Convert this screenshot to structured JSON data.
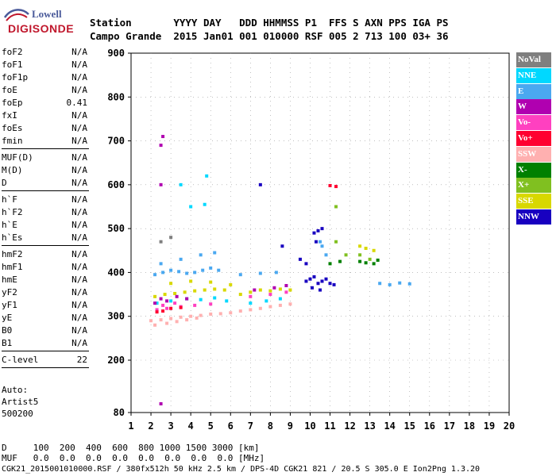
{
  "logo": {
    "line1": "Lowell",
    "line2": "DIGISONDE"
  },
  "header": {
    "row1": "Station       YYYY DAY   DDD HHMMSS P1  FFS S AXN PPS IGA PS",
    "row2": "Campo Grande  2015 Jan01 001 010000 RSF 005 2 713 100 03+ 36"
  },
  "params": [
    {
      "name": "foF2",
      "value": "N/A"
    },
    {
      "name": "foF1",
      "value": "N/A"
    },
    {
      "name": "foF1p",
      "value": "N/A"
    },
    {
      "name": "foE",
      "value": "N/A"
    },
    {
      "name": "foEp",
      "value": "0.41"
    },
    {
      "name": "fxI",
      "value": "N/A"
    },
    {
      "name": "foEs",
      "value": "N/A"
    },
    {
      "name": "fmin",
      "value": "N/A"
    },
    {
      "name": "MUF(D)",
      "value": "N/A"
    },
    {
      "name": "M(D)",
      "value": "N/A"
    },
    {
      "name": "D",
      "value": "N/A"
    },
    {
      "name": "h`F",
      "value": "N/A"
    },
    {
      "name": "h`F2",
      "value": "N/A"
    },
    {
      "name": "h`E",
      "value": "N/A"
    },
    {
      "name": "h`Es",
      "value": "N/A"
    },
    {
      "name": "hmF2",
      "value": "N/A"
    },
    {
      "name": "hmF1",
      "value": "N/A"
    },
    {
      "name": "hmE",
      "value": "N/A"
    },
    {
      "name": "yF2",
      "value": "N/A"
    },
    {
      "name": "yF1",
      "value": "N/A"
    },
    {
      "name": "yE",
      "value": "N/A"
    },
    {
      "name": "B0",
      "value": "N/A"
    },
    {
      "name": "B1",
      "value": "N/A"
    },
    {
      "name": "C-level",
      "value": "22"
    }
  ],
  "auto": {
    "line1": "Auto:",
    "line2": "Artist5",
    "line3": "500200"
  },
  "legend": [
    {
      "label": "NoVal",
      "color": "#7f7f7f"
    },
    {
      "label": "NNE",
      "color": "#00d8ff"
    },
    {
      "label": "E",
      "color": "#4aa8f0"
    },
    {
      "label": "W",
      "color": "#b000b0"
    },
    {
      "label": "Vo-",
      "color": "#ff40c0"
    },
    {
      "label": "Vo+",
      "color": "#ff0030"
    },
    {
      "label": "SSW",
      "color": "#ffb0b0"
    },
    {
      "label": "X-",
      "color": "#008000"
    },
    {
      "label": "X+",
      "color": "#80c020"
    },
    {
      "label": "SSE",
      "color": "#d8d800"
    },
    {
      "label": "NNW",
      "color": "#1800c0"
    }
  ],
  "footer": {
    "line1": "D     100  200  400  600  800 1000 1500 3000 [km]",
    "line2": "MUF   0.0  0.0  0.0  0.0  0.0  0.0  0.0  0.0 [MHz]",
    "file": "CGK21_2015001010000.RSF / 380fx512h 50 kHz 2.5 km / DPS-4D CGK21 821 / 20.5 S 305.0 E Ion2Png 1.3.20"
  },
  "chart_data": {
    "type": "scatter",
    "xlim": [
      1,
      20
    ],
    "ylim": [
      80,
      900
    ],
    "xticks": [
      "1",
      "2",
      "3",
      "4",
      "5",
      "6",
      "7",
      "8",
      "9",
      "10",
      "11",
      "12",
      "13",
      "14",
      "15",
      "16",
      "17",
      "18",
      "19",
      "20"
    ],
    "yticks": [
      "80",
      "200",
      "300",
      "400",
      "500",
      "600",
      "700",
      "800",
      "900"
    ],
    "grid": true,
    "series": [
      {
        "name": "SSW",
        "color": "#ffb0b0",
        "points": [
          [
            2.0,
            290
          ],
          [
            2.5,
            292
          ],
          [
            3.0,
            295
          ],
          [
            3.5,
            298
          ],
          [
            4.0,
            300
          ],
          [
            4.5,
            302
          ],
          [
            5.0,
            305
          ],
          [
            5.5,
            306
          ],
          [
            6.0,
            308
          ],
          [
            6.5,
            312
          ],
          [
            7.0,
            315
          ],
          [
            7.5,
            318
          ],
          [
            8.0,
            322
          ],
          [
            8.5,
            325
          ],
          [
            9.0,
            328
          ],
          [
            2.2,
            280
          ],
          [
            2.8,
            284
          ],
          [
            3.3,
            288
          ],
          [
            3.8,
            292
          ],
          [
            4.3,
            296
          ]
        ]
      },
      {
        "name": "E",
        "color": "#4aa8f0",
        "points": [
          [
            2.2,
            395
          ],
          [
            2.6,
            400
          ],
          [
            3.0,
            405
          ],
          [
            3.4,
            402
          ],
          [
            3.8,
            398
          ],
          [
            4.2,
            400
          ],
          [
            4.6,
            405
          ],
          [
            5.0,
            410
          ],
          [
            5.4,
            405
          ],
          [
            2.5,
            420
          ],
          [
            3.5,
            430
          ],
          [
            4.5,
            440
          ],
          [
            5.2,
            445
          ],
          [
            6.5,
            395
          ],
          [
            7.5,
            398
          ],
          [
            8.3,
            400
          ],
          [
            13.5,
            375
          ],
          [
            14.0,
            372
          ],
          [
            14.5,
            376
          ],
          [
            15.0,
            374
          ],
          [
            10.6,
            460
          ],
          [
            10.8,
            440
          ],
          [
            10.5,
            470
          ]
        ]
      },
      {
        "name": "NNE",
        "color": "#00d8ff",
        "points": [
          [
            2.3,
            330
          ],
          [
            3.0,
            335
          ],
          [
            3.8,
            340
          ],
          [
            4.5,
            338
          ],
          [
            5.2,
            342
          ],
          [
            5.8,
            335
          ],
          [
            4.0,
            550
          ],
          [
            4.7,
            555
          ],
          [
            7.0,
            330
          ],
          [
            7.8,
            335
          ],
          [
            8.5,
            340
          ],
          [
            3.5,
            600
          ],
          [
            4.8,
            620
          ]
        ]
      },
      {
        "name": "SSE",
        "color": "#d8d800",
        "points": [
          [
            2.2,
            345
          ],
          [
            2.7,
            350
          ],
          [
            3.2,
            352
          ],
          [
            3.7,
            355
          ],
          [
            4.2,
            358
          ],
          [
            4.7,
            360
          ],
          [
            5.2,
            362
          ],
          [
            5.7,
            360
          ],
          [
            6.5,
            350
          ],
          [
            7.0,
            355
          ],
          [
            7.5,
            360
          ],
          [
            8.0,
            358
          ],
          [
            8.5,
            362
          ],
          [
            9.0,
            360
          ],
          [
            12.5,
            460
          ],
          [
            12.8,
            455
          ],
          [
            13.2,
            450
          ],
          [
            3.0,
            375
          ],
          [
            4.0,
            380
          ],
          [
            5.0,
            378
          ],
          [
            6.0,
            372
          ]
        ]
      },
      {
        "name": "Vo-",
        "color": "#ff40c0",
        "points": [
          [
            2.3,
            315
          ],
          [
            2.8,
            318
          ],
          [
            3.5,
            322
          ],
          [
            4.2,
            325
          ],
          [
            5.0,
            328
          ],
          [
            2.6,
            325
          ],
          [
            3.2,
            330
          ],
          [
            7.0,
            345
          ],
          [
            8.0,
            350
          ],
          [
            8.8,
            355
          ]
        ]
      },
      {
        "name": "W",
        "color": "#b000b0",
        "points": [
          [
            2.2,
            330
          ],
          [
            2.5,
            340
          ],
          [
            2.8,
            335
          ],
          [
            3.3,
            345
          ],
          [
            3.8,
            340
          ],
          [
            2.5,
            690
          ],
          [
            2.6,
            710
          ],
          [
            2.5,
            600
          ],
          [
            2.5,
            100
          ],
          [
            7.2,
            360
          ],
          [
            8.2,
            365
          ],
          [
            8.8,
            370
          ]
        ]
      },
      {
        "name": "Vo+",
        "color": "#ff0030",
        "points": [
          [
            2.3,
            310
          ],
          [
            2.6,
            312
          ],
          [
            3.0,
            318
          ],
          [
            3.5,
            320
          ],
          [
            11.0,
            598
          ],
          [
            11.3,
            596
          ]
        ]
      },
      {
        "name": "X-",
        "color": "#008000",
        "points": [
          [
            11.0,
            420
          ],
          [
            11.5,
            425
          ],
          [
            12.5,
            425
          ],
          [
            12.8,
            422
          ],
          [
            13.2,
            420
          ],
          [
            13.4,
            428
          ]
        ]
      },
      {
        "name": "X+",
        "color": "#80c020",
        "points": [
          [
            11.3,
            470
          ],
          [
            11.8,
            440
          ],
          [
            12.5,
            440
          ],
          [
            13.0,
            430
          ],
          [
            11.3,
            550
          ]
        ]
      },
      {
        "name": "NNW",
        "color": "#1800c0",
        "points": [
          [
            9.8,
            380
          ],
          [
            10.0,
            385
          ],
          [
            10.2,
            390
          ],
          [
            10.4,
            375
          ],
          [
            10.6,
            380
          ],
          [
            10.8,
            385
          ],
          [
            11.0,
            375
          ],
          [
            11.2,
            372
          ],
          [
            10.2,
            490
          ],
          [
            10.4,
            495
          ],
          [
            10.6,
            500
          ],
          [
            10.3,
            470
          ],
          [
            10.1,
            365
          ],
          [
            10.5,
            360
          ],
          [
            9.5,
            430
          ],
          [
            8.6,
            460
          ],
          [
            7.5,
            600
          ],
          [
            9.8,
            420
          ]
        ]
      },
      {
        "name": "NoVal",
        "color": "#7f7f7f",
        "points": [
          [
            2.5,
            470
          ],
          [
            3.0,
            480
          ]
        ]
      }
    ]
  }
}
